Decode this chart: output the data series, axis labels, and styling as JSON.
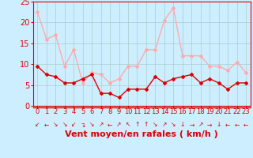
{
  "hours": [
    0,
    1,
    2,
    3,
    4,
    5,
    6,
    7,
    8,
    9,
    10,
    11,
    12,
    13,
    14,
    15,
    16,
    17,
    18,
    19,
    20,
    21,
    22,
    23
  ],
  "wind_avg": [
    9.5,
    7.5,
    7,
    5.5,
    5.5,
    6.5,
    7.5,
    3,
    3,
    2,
    4,
    4,
    4,
    7,
    5.5,
    6.5,
    7,
    7.5,
    5.5,
    6.5,
    5.5,
    4,
    5.5,
    5.5
  ],
  "wind_gust": [
    22.5,
    16,
    17,
    9.5,
    13.5,
    5.5,
    8,
    7.5,
    5.5,
    6.5,
    9.5,
    9.5,
    13.5,
    13.5,
    20.5,
    23.5,
    12,
    12,
    12,
    9.5,
    9.5,
    8.5,
    10.5,
    8
  ],
  "avg_color": "#dd0000",
  "gust_color": "#ffaaaa",
  "bg_color": "#cceeff",
  "grid_color": "#aacccc",
  "xlabel": "Vent moyen/en rafales ( km/h )",
  "ylim": [
    0,
    25
  ],
  "yticks": [
    0,
    5,
    10,
    15,
    20,
    25
  ],
  "tick_fontsize": 7,
  "label_fontsize": 8,
  "arrow_symbols": [
    "↙",
    "←",
    "↘",
    "↘",
    "↙",
    "↴",
    "↘",
    "↗",
    "←",
    "↗",
    "↖",
    "↑",
    "↑",
    "↘",
    "↗",
    "↘",
    "↓",
    "→",
    "↗",
    "→",
    "↓",
    "←",
    "←",
    "←"
  ]
}
